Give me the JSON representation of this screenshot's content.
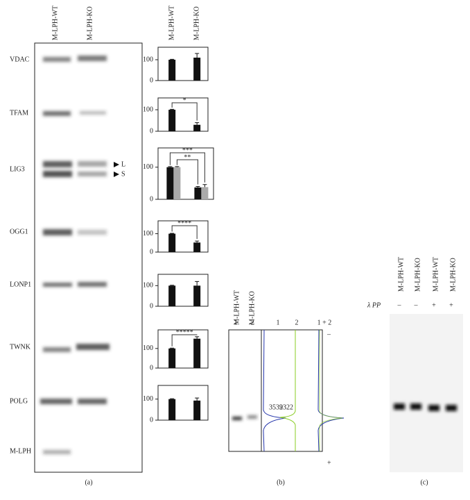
{
  "blot_panel": {
    "columns": [
      "M-LPH-WT",
      "M-LPH-KO"
    ],
    "rows": [
      "VDAC",
      "TFAM",
      "LIG3",
      "OGG1",
      "LONP1",
      "TWNK",
      "POLG",
      "M-LPH"
    ],
    "arrows": [
      "L",
      "S"
    ],
    "caption": "(a)"
  },
  "chart_data": [
    {
      "type": "bar",
      "categories": [
        "M-LPH-WT",
        "M-LPH-KO"
      ],
      "ylim": [
        0,
        160
      ],
      "yticks": [
        0,
        100
      ],
      "series": [
        {
          "color": "#111111",
          "values": [
            100,
            110
          ],
          "errors": [
            2,
            20
          ]
        }
      ],
      "annotations": []
    },
    {
      "type": "bar",
      "categories": [
        null,
        null
      ],
      "ylim": [
        0,
        155
      ],
      "yticks": [
        0,
        100
      ],
      "series": [
        {
          "color": "#111111",
          "values": [
            100,
            30
          ],
          "errors": [
            2,
            10
          ]
        }
      ],
      "annotations": [
        "*"
      ]
    },
    {
      "type": "bar",
      "categories": [
        null,
        null
      ],
      "ylim": [
        0,
        160
      ],
      "yticks": [
        0,
        100
      ],
      "series": [
        {
          "color": "#111111",
          "values": [
            100,
            37
          ],
          "errors": [
            2,
            3
          ]
        },
        {
          "color": "#aaaaaa",
          "values": [
            100,
            38
          ],
          "errors": [
            2,
            8
          ]
        }
      ],
      "annotations": [
        "***",
        "**"
      ]
    },
    {
      "type": "bar",
      "categories": [
        null,
        null
      ],
      "ylim": [
        0,
        170
      ],
      "yticks": [
        0,
        100
      ],
      "series": [
        {
          "color": "#111111",
          "values": [
            100,
            52
          ],
          "errors": [
            2,
            8
          ]
        }
      ],
      "annotations": [
        "****"
      ]
    },
    {
      "type": "bar",
      "categories": [
        null,
        null
      ],
      "ylim": [
        0,
        155
      ],
      "yticks": [
        0,
        100
      ],
      "series": [
        {
          "color": "#111111",
          "values": [
            100,
            100
          ],
          "errors": [
            2,
            20
          ]
        }
      ],
      "annotations": []
    },
    {
      "type": "bar",
      "categories": [
        null,
        null
      ],
      "ylim": [
        0,
        195
      ],
      "yticks": [
        0,
        100
      ],
      "series": [
        {
          "color": "#111111",
          "values": [
            100,
            150
          ],
          "errors": [
            2,
            10
          ]
        }
      ],
      "annotations": [
        "*****"
      ]
    },
    {
      "type": "bar",
      "categories": [
        null,
        null
      ],
      "ylim": [
        0,
        165
      ],
      "yticks": [
        0,
        100
      ],
      "series": [
        {
          "color": "#111111",
          "values": [
            100,
            93
          ],
          "errors": [
            2,
            12
          ]
        }
      ],
      "annotations": []
    }
  ],
  "panel_b": {
    "lanes": [
      "M-LPH-WT",
      "M-LPH-KO"
    ],
    "lane_numbers": [
      "1",
      "2"
    ],
    "trace_headers": [
      "1",
      "2",
      "1 + 2"
    ],
    "peak_values": [
      "3539",
      "2322"
    ],
    "minus": "–",
    "plus": "+",
    "caption": "(b)"
  },
  "panel_c": {
    "lanes": [
      "M-LPH-WT",
      "M-LPH-KO",
      "M-LPH-WT",
      "M-LPH-KO"
    ],
    "treatment": "λ PP",
    "signs": [
      "–",
      "–",
      "+",
      "+"
    ],
    "caption": "(c)"
  }
}
